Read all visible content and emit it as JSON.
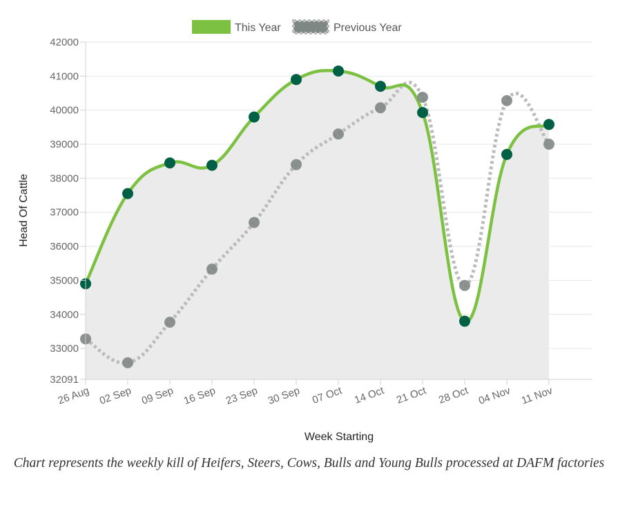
{
  "chart_data": {
    "type": "line",
    "xlabel": "Week Starting",
    "ylabel": "Head Of Cattle",
    "categories": [
      "26 Aug",
      "02 Sep",
      "09 Sep",
      "16 Sep",
      "23 Sep",
      "30 Sep",
      "07 Oct",
      "14 Oct",
      "21 Oct",
      "28 Oct",
      "04 Nov",
      "11 Nov"
    ],
    "ylim": [
      32091,
      42000
    ],
    "yticks": [
      "32091",
      "33000",
      "34000",
      "35000",
      "36000",
      "37000",
      "38000",
      "39000",
      "40000",
      "41000",
      "42000"
    ],
    "grid": true,
    "legend_position": "top",
    "series": [
      {
        "name": "This Year",
        "line_color": "#7dc142",
        "marker_color": "#006046",
        "style": "solid",
        "fill": "#ebebeb",
        "values": [
          34900,
          37550,
          38450,
          38380,
          39800,
          40900,
          41150,
          40700,
          39930,
          33800,
          38700,
          39580
        ]
      },
      {
        "name": "Previous Year",
        "line_color": "#bbbbbb",
        "marker_color": "#7f8785",
        "style": "dotted",
        "values": [
          33280,
          32580,
          33770,
          35330,
          36700,
          38400,
          39300,
          40070,
          40380,
          34850,
          40280,
          39000
        ]
      }
    ]
  },
  "caption": "Chart represents the weekly kill of Heifers, Steers, Cows, Bulls and Young Bulls processed at DAFM factories"
}
